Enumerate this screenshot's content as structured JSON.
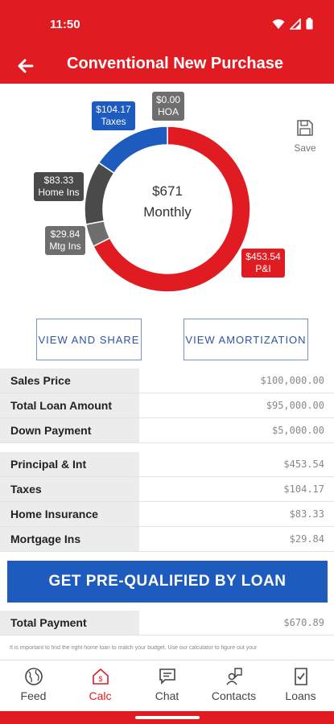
{
  "status": {
    "time": "11:50"
  },
  "header": {
    "title": "Conventional New Purchase"
  },
  "chart_data": {
    "type": "pie",
    "style": "donut",
    "center_amount": "$671",
    "center_label": "Monthly",
    "slices": [
      {
        "name": "P&I",
        "value": 453.54,
        "label_value": "$453.54",
        "color": "#e01b22"
      },
      {
        "name": "Mtg Ins",
        "value": 29.84,
        "label_value": "$29.84",
        "color": "#6e6e6e"
      },
      {
        "name": "Home Ins",
        "value": 83.33,
        "label_value": "$83.33",
        "color": "#4a4a4a"
      },
      {
        "name": "Taxes",
        "value": 104.17,
        "label_value": "$104.17",
        "color": "#1d5bbf"
      },
      {
        "name": "HOA",
        "value": 0.0,
        "label_value": "$0.00",
        "color": "#6e6e6e"
      }
    ]
  },
  "save": {
    "label": "Save",
    "icon": "save-icon"
  },
  "actions": {
    "view_share": "VIEW AND SHARE",
    "view_amortization": "VIEW AMORTIZATION"
  },
  "loan_rows": [
    {
      "label": "Sales Price",
      "value": "$100,000.00"
    },
    {
      "label": "Total Loan Amount",
      "value": "$95,000.00"
    },
    {
      "label": "Down Payment",
      "value": "$5,000.00"
    }
  ],
  "payment_rows": [
    {
      "label": "Principal & Int",
      "value": "$453.54"
    },
    {
      "label": "Taxes",
      "value": "$104.17"
    },
    {
      "label": "Home Insurance",
      "value": "$83.33"
    },
    {
      "label": "Mortgage Ins",
      "value": "$29.84"
    }
  ],
  "cta": {
    "label": "GET PRE-QUALIFIED BY LOAN"
  },
  "total": {
    "label": "Total Payment",
    "value": "$670.89"
  },
  "disclaimer": "It is important to find the right home loan to match your budget. Use our calculator to figure out your",
  "nav": [
    {
      "label": "Feed",
      "icon": "globe-icon",
      "active": false
    },
    {
      "label": "Calc",
      "icon": "home-dollar-icon",
      "active": true
    },
    {
      "label": "Chat",
      "icon": "chat-icon",
      "active": false
    },
    {
      "label": "Contacts",
      "icon": "contacts-icon",
      "active": false
    },
    {
      "label": "Loans",
      "icon": "document-check-icon",
      "active": false
    }
  ],
  "colors": {
    "brand_red": "#e01b22",
    "brand_blue": "#1d5bbf"
  }
}
